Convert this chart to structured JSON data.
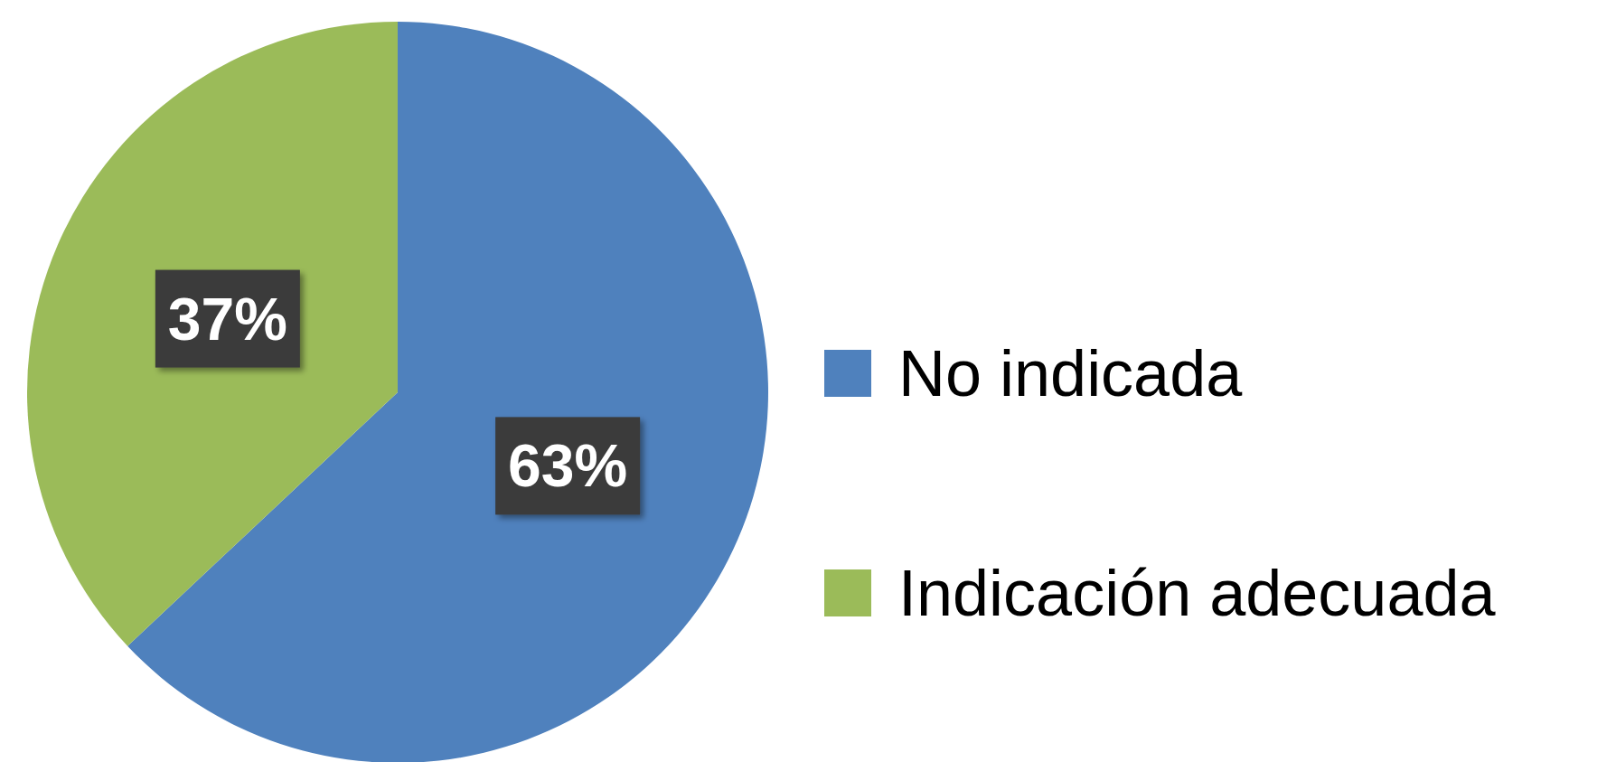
{
  "chart_data": {
    "type": "pie",
    "categories": [
      "No indicada",
      "Indicación adecuada"
    ],
    "values": [
      63,
      37
    ],
    "colors": [
      "#4f81bd",
      "#9bbb59"
    ],
    "value_labels": [
      "63%",
      "37%"
    ],
    "legend": "right"
  }
}
